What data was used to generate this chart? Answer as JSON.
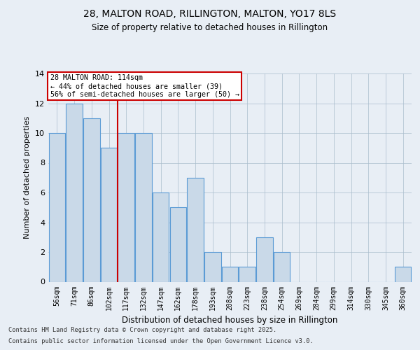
{
  "title1": "28, MALTON ROAD, RILLINGTON, MALTON, YO17 8LS",
  "title2": "Size of property relative to detached houses in Rillington",
  "xlabel": "Distribution of detached houses by size in Rillington",
  "ylabel": "Number of detached properties",
  "categories": [
    "56sqm",
    "71sqm",
    "86sqm",
    "102sqm",
    "117sqm",
    "132sqm",
    "147sqm",
    "162sqm",
    "178sqm",
    "193sqm",
    "208sqm",
    "223sqm",
    "238sqm",
    "254sqm",
    "269sqm",
    "284sqm",
    "299sqm",
    "314sqm",
    "330sqm",
    "345sqm",
    "360sqm"
  ],
  "values": [
    10,
    12,
    11,
    9,
    10,
    10,
    6,
    5,
    7,
    2,
    1,
    1,
    3,
    2,
    0,
    0,
    0,
    0,
    0,
    0,
    1
  ],
  "bar_color": "#c9d9e8",
  "bar_edge_color": "#5b9bd5",
  "red_line_x": 3.5,
  "annotation_title": "28 MALTON ROAD: 114sqm",
  "annotation_line1": "← 44% of detached houses are smaller (39)",
  "annotation_line2": "56% of semi-detached houses are larger (50) →",
  "annotation_box_color": "#ffffff",
  "annotation_box_edge": "#cc0000",
  "red_line_color": "#cc0000",
  "ylim": [
    0,
    14
  ],
  "yticks": [
    0,
    2,
    4,
    6,
    8,
    10,
    12,
    14
  ],
  "footer1": "Contains HM Land Registry data © Crown copyright and database right 2025.",
  "footer2": "Contains public sector information licensed under the Open Government Licence v3.0.",
  "bg_color": "#e8eef5",
  "plot_bg_color": "#e8eef5"
}
